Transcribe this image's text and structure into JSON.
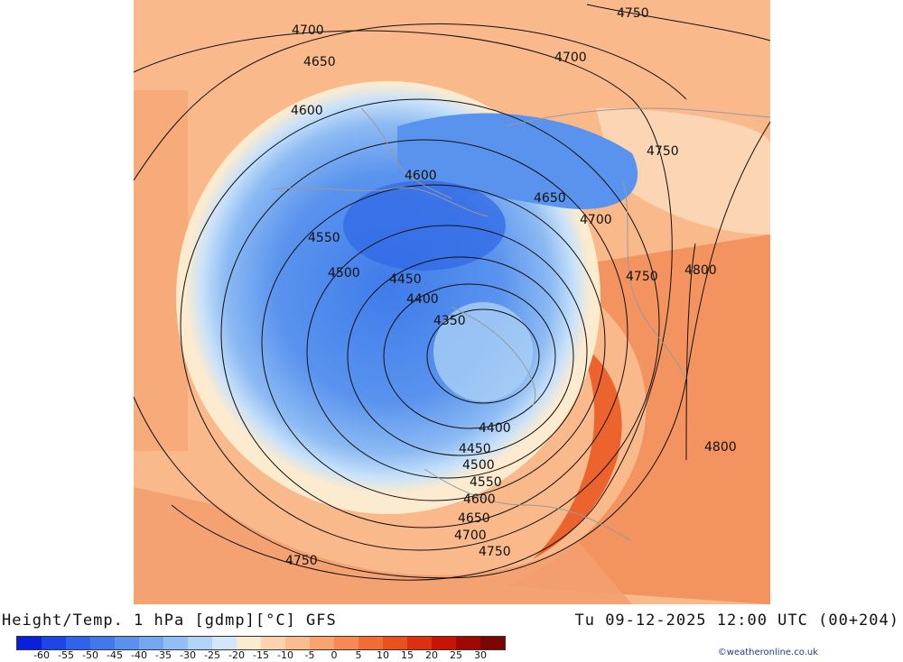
{
  "title": "Height/Temp. 1 hPa [gdmp][°C] GFS",
  "valid_time": "Tu 09-12-2025 12:00 UTC (00+204)",
  "credit": "©weatheronline.co.uk",
  "colorbar": {
    "labels": [
      "-60",
      "-55",
      "-50",
      "-45",
      "-40",
      "-35",
      "-30",
      "-25",
      "-20",
      "-15",
      "-10",
      "-5",
      "0",
      "5",
      "10",
      "15",
      "20",
      "25",
      "30"
    ],
    "colors": [
      "#0a1fd8",
      "#1e46e6",
      "#2e63ea",
      "#4179ec",
      "#5a90ee",
      "#75a7f0",
      "#92bef3",
      "#b0d3f6",
      "#d2e8fa",
      "#fdebd0",
      "#fcd3ae",
      "#fbbd8e",
      "#f9a470",
      "#f68a52",
      "#f06e36",
      "#e8501e",
      "#dd300c",
      "#c81405",
      "#a00802",
      "#7a0501"
    ]
  },
  "map": {
    "background": "#f9b98a",
    "contour_labels": [
      "4700",
      "4650",
      "4600",
      "4600",
      "4550",
      "4500",
      "4450",
      "4400",
      "4350",
      "4400",
      "4450",
      "4500",
      "4550",
      "4600",
      "4650",
      "4700",
      "4750",
      "4750",
      "4700",
      "4750",
      "4650",
      "4700",
      "4750",
      "4800",
      "4750",
      "4800"
    ]
  }
}
